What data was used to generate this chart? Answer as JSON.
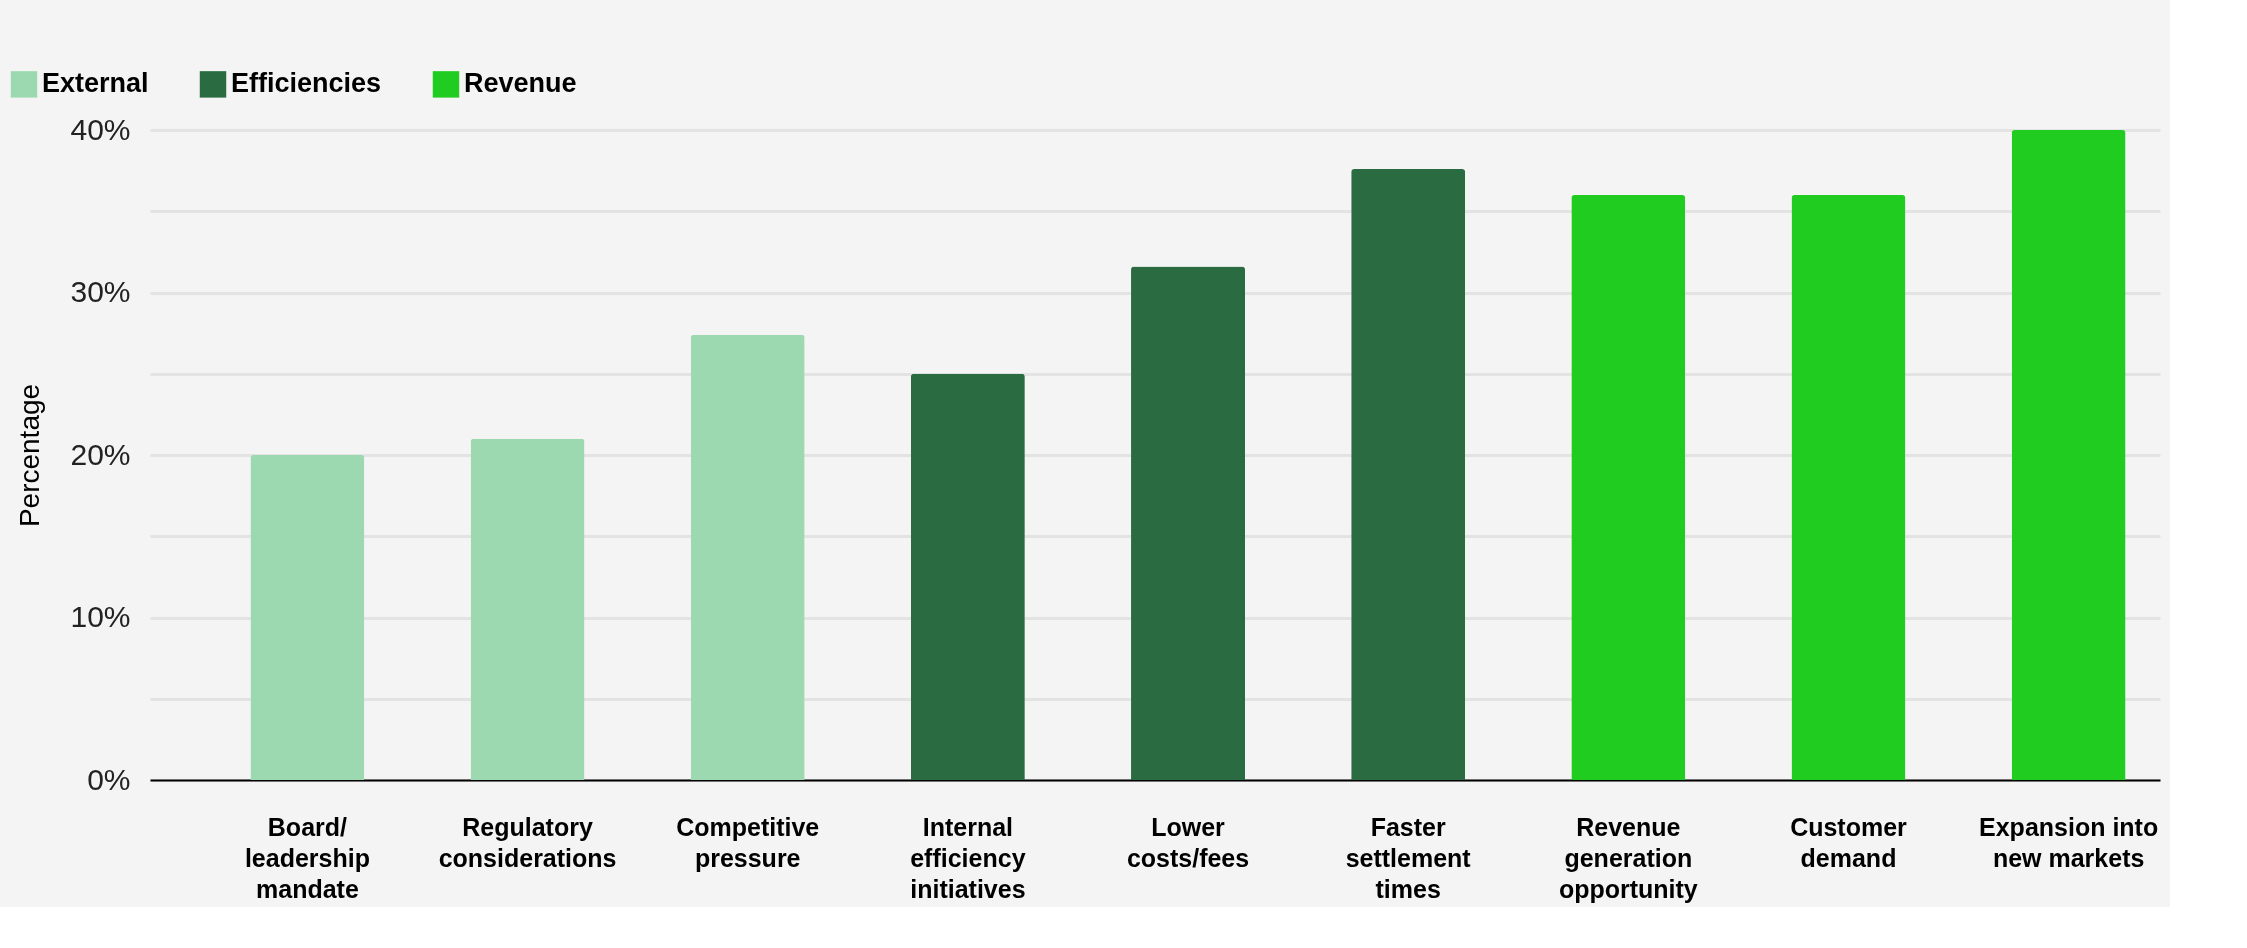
{
  "chart_data": {
    "type": "bar",
    "ylabel": "Percentage",
    "categories": [
      "Board/\nleadership\nmandate",
      "Regulatory\nconsiderations",
      "Competitive\npressure",
      "Internal\nefficiency\ninitiatives",
      "Lower\ncosts/fees",
      "Faster\nsettlement\ntimes",
      "Revenue\ngeneration\nopportunity",
      "Customer\ndemand",
      "Expansion into\nnew markets"
    ],
    "series": [
      {
        "name": "External",
        "color": "#9dd9b0",
        "values": [
          20,
          21,
          27.4,
          null,
          null,
          null,
          null,
          null,
          null
        ]
      },
      {
        "name": "Efficiencies",
        "color": "#2a6b42",
        "values": [
          null,
          null,
          null,
          25,
          31.6,
          37.6,
          null,
          null,
          null
        ]
      },
      {
        "name": "Revenue",
        "color": "#1fcc1f",
        "values": [
          null,
          null,
          null,
          null,
          null,
          null,
          36,
          36,
          40
        ]
      }
    ],
    "ylim": [
      0,
      40
    ],
    "yticks": [
      {
        "value": 0,
        "label": "0%"
      },
      {
        "value": 5,
        "label": null
      },
      {
        "value": 10,
        "label": "10%"
      },
      {
        "value": 15,
        "label": null
      },
      {
        "value": 20,
        "label": "20%"
      },
      {
        "value": 25,
        "label": null
      },
      {
        "value": 30,
        "label": "30%"
      },
      {
        "value": 35,
        "label": null
      },
      {
        "value": 40,
        "label": "40%"
      }
    ],
    "grid": "y",
    "legend": "top left"
  }
}
